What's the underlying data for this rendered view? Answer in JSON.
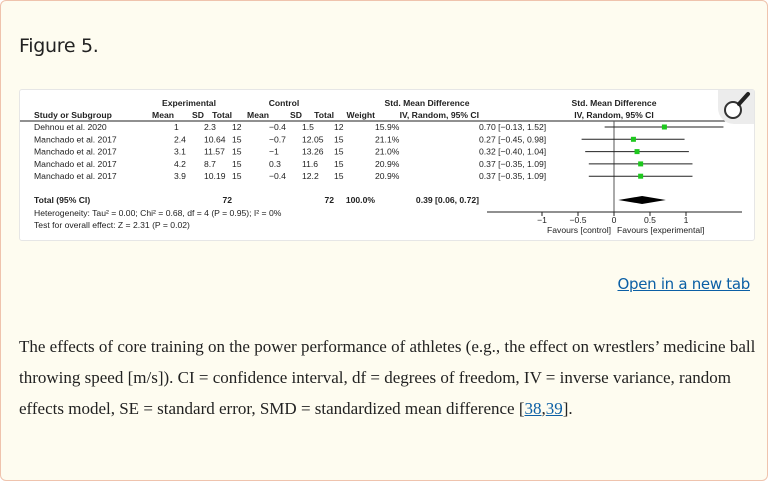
{
  "figure_title": "Figure 5.",
  "open_link": "Open in a new tab",
  "caption": {
    "text": "The effects of core training on the power performance of athletes (e.g., the effect on wrestlers’ medicine ball throwing speed [m/s]). CI = confidence interval, df = degrees of freedom, IV = inverse variance, random effects model, SE = standard error, SMD = standardized mean difference [",
    "ref1": "38",
    "sep": ",",
    "ref2": "39",
    "end": "]."
  },
  "colors": {
    "point": "#1ec81e",
    "diamond": "#000000",
    "link": "#0b5fa5",
    "panel_bg": "#fefcf0",
    "panel_border": "#efc3ad"
  },
  "icons": {
    "zoom": "magnifier-icon"
  },
  "chart_data": {
    "type": "forest",
    "table_headers": {
      "group_experimental": "Experimental",
      "group_control": "Control",
      "group_effect": "Std. Mean Difference",
      "study": "Study or Subgroup",
      "mean": "Mean",
      "sd": "SD",
      "total": "Total",
      "weight": "Weight",
      "effect_ci": "IV, Random, 95% CI"
    },
    "plot_headers": {
      "line1": "Std. Mean Difference",
      "line2": "IV, Random, 95% CI"
    },
    "studies": [
      {
        "name": "Dehnou et al. 2020",
        "e_mean": "1",
        "e_sd": "2.3",
        "e_total": "12",
        "c_mean": "−0.4",
        "c_sd": "1.5",
        "c_total": "12",
        "weight": "15.9%",
        "ci_text": "0.70 [−0.13, 1.52]",
        "smd": 0.7,
        "lo": -0.13,
        "hi": 1.52
      },
      {
        "name": "Manchado et al. 2017",
        "e_mean": "2.4",
        "e_sd": "10.64",
        "e_total": "15",
        "c_mean": "−0.7",
        "c_sd": "12.05",
        "c_total": "15",
        "weight": "21.1%",
        "ci_text": "0.27 [−0.45, 0.98]",
        "smd": 0.27,
        "lo": -0.45,
        "hi": 0.98
      },
      {
        "name": "Manchado et al. 2017",
        "e_mean": "3.1",
        "e_sd": "11.57",
        "e_total": "15",
        "c_mean": "−1",
        "c_sd": "13.26",
        "c_total": "15",
        "weight": "21.0%",
        "ci_text": "0.32 [−0.40, 1.04]",
        "smd": 0.32,
        "lo": -0.4,
        "hi": 1.04
      },
      {
        "name": "Manchado et al. 2017",
        "e_mean": "4.2",
        "e_sd": "8.7",
        "e_total": "15",
        "c_mean": "0.3",
        "c_sd": "11.6",
        "c_total": "15",
        "weight": "20.9%",
        "ci_text": "0.37 [−0.35, 1.09]",
        "smd": 0.37,
        "lo": -0.35,
        "hi": 1.09
      },
      {
        "name": "Manchado et al. 2017",
        "e_mean": "3.9",
        "e_sd": "10.19",
        "e_total": "15",
        "c_mean": "−0.4",
        "c_sd": "12.2",
        "c_total": "15",
        "weight": "20.9%",
        "ci_text": "0.37 [−0.35, 1.09]",
        "smd": 0.37,
        "lo": -0.35,
        "hi": 1.09
      }
    ],
    "total": {
      "label": "Total (95% CI)",
      "e_total": "72",
      "c_total": "72",
      "weight": "100.0%",
      "ci_text": "0.39 [0.06, 0.72]",
      "smd": 0.39,
      "lo": 0.06,
      "hi": 0.72
    },
    "heterogeneity": "Heterogeneity: Tau² = 0.00; Chi² = 0.68, df = 4 (P = 0.95); I² = 0%",
    "overall_effect": "Test for overall effect: Z = 2.31 (P = 0.02)",
    "x_ticks": [
      -1,
      -0.5,
      0,
      0.5,
      1
    ],
    "x_tick_labels": [
      "−1",
      "−0.5",
      "0",
      "0.5",
      "1"
    ],
    "xlim": [
      -1.75,
      1.75
    ],
    "favours_left": "Favours [control]",
    "favours_right": "Favours [experimental]"
  }
}
